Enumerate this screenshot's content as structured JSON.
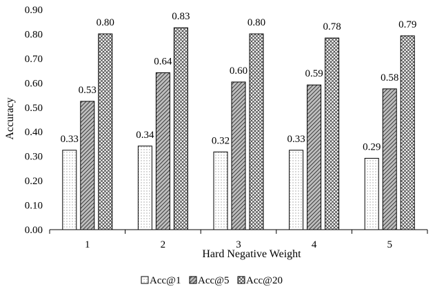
{
  "chart_data": {
    "type": "bar",
    "title": "",
    "xlabel": "Hard Negative Weight",
    "ylabel": "Accuracy",
    "categories": [
      "1",
      "2",
      "3",
      "4",
      "5"
    ],
    "ylim": [
      0,
      0.9
    ],
    "yticks": [
      "0.00",
      "0.10",
      "0.20",
      "0.30",
      "0.40",
      "0.50",
      "0.60",
      "0.70",
      "0.80",
      "0.90"
    ],
    "grid": false,
    "legend_position": "bottom",
    "series": [
      {
        "name": "Acc@1",
        "values": [
          0.325,
          0.342,
          0.318,
          0.325,
          0.292
        ],
        "labels": [
          "0.33",
          "0.34",
          "0.32",
          "0.33",
          "0.29"
        ],
        "pattern": "dots"
      },
      {
        "name": "Acc@5",
        "values": [
          0.525,
          0.642,
          0.604,
          0.592,
          0.576
        ],
        "labels": [
          "0.53",
          "0.64",
          "0.60",
          "0.59",
          "0.58"
        ],
        "pattern": "diagonal"
      },
      {
        "name": "Acc@20",
        "values": [
          0.801,
          0.826,
          0.801,
          0.784,
          0.793
        ],
        "labels": [
          "0.80",
          "0.83",
          "0.80",
          "0.78",
          "0.79"
        ],
        "pattern": "crosshatch"
      }
    ]
  }
}
